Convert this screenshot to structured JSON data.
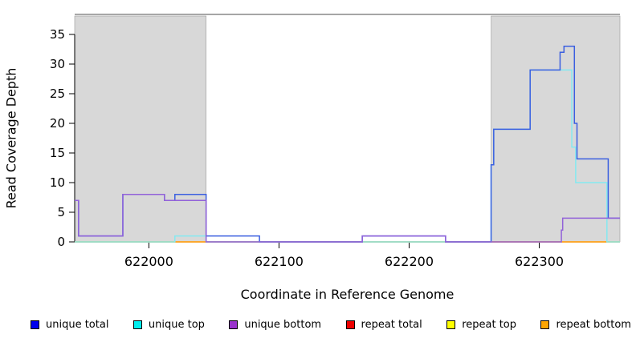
{
  "ylabel": "Read Coverage Depth",
  "xlabel": "Coordinate in Reference Genome",
  "chart_data": {
    "type": "line",
    "line_style": "step",
    "title": "",
    "xlabel": "Coordinate in Reference Genome",
    "ylabel": "Read Coverage Depth",
    "xlim": [
      621943,
      622362
    ],
    "ylim": [
      0,
      37
    ],
    "x_ticks": [
      622000,
      622100,
      622200,
      622300
    ],
    "y_ticks": [
      0,
      5,
      10,
      15,
      20,
      25,
      30,
      35
    ],
    "grid": false,
    "shaded_regions": {
      "color": "#d8d8d8",
      "border_color": "#9a9a9a",
      "ranges": [
        [
          621943,
          622044
        ],
        [
          622263,
          622362
        ]
      ]
    },
    "series": [
      {
        "name": "repeat total",
        "color": "#e8607a",
        "legend_color": "#ee0000",
        "points": [
          [
            621943,
            0
          ],
          [
            622362,
            0
          ]
        ]
      },
      {
        "name": "repeat top",
        "color": "#f2f22a",
        "legend_color": "#ffff00",
        "points": [
          [
            621943,
            0
          ],
          [
            622362,
            0
          ]
        ]
      },
      {
        "name": "repeat bottom",
        "color": "#ff9d1e",
        "legend_color": "#ffa500",
        "points": [
          [
            621943,
            0
          ],
          [
            622020,
            0
          ],
          [
            622040,
            0
          ],
          [
            622263,
            0
          ],
          [
            622353,
            0
          ],
          [
            622362,
            0
          ]
        ]
      },
      {
        "name": "unique top",
        "color": "#84e9f0",
        "legend_color": "#00eeee",
        "points": [
          [
            621943,
            0
          ],
          [
            622020,
            1
          ],
          [
            622044,
            0
          ],
          [
            622263,
            13
          ],
          [
            622265,
            19
          ],
          [
            622293,
            29
          ],
          [
            622325,
            16
          ],
          [
            622328,
            10
          ],
          [
            622352,
            0
          ],
          [
            622362,
            0
          ]
        ]
      },
      {
        "name": "unique total",
        "color": "#3b5fe0",
        "legend_color": "#0000ee",
        "points": [
          [
            621943,
            7
          ],
          [
            621946,
            1
          ],
          [
            621980,
            8
          ],
          [
            622012,
            7
          ],
          [
            622020,
            8
          ],
          [
            622044,
            1
          ],
          [
            622085,
            0
          ],
          [
            622164,
            1
          ],
          [
            622228,
            0
          ],
          [
            622263,
            13
          ],
          [
            622265,
            19
          ],
          [
            622293,
            29
          ],
          [
            622316,
            32
          ],
          [
            622319,
            33
          ],
          [
            622327,
            20
          ],
          [
            622329,
            14
          ],
          [
            622353,
            4
          ],
          [
            622362,
            4
          ]
        ]
      },
      {
        "name": "unique bottom",
        "color": "#9262d9",
        "legend_color": "#9a32cd",
        "points": [
          [
            621943,
            7
          ],
          [
            621946,
            1
          ],
          [
            621980,
            8
          ],
          [
            622012,
            7
          ],
          [
            622044,
            0
          ],
          [
            622164,
            1
          ],
          [
            622228,
            0
          ],
          [
            622317,
            2
          ],
          [
            622318,
            4
          ],
          [
            622362,
            4
          ]
        ]
      }
    ]
  },
  "legend": {
    "items": [
      {
        "label": "unique total",
        "color": "#0000ee"
      },
      {
        "label": "unique top",
        "color": "#00eeee"
      },
      {
        "label": "unique bottom",
        "color": "#9a32cd"
      },
      {
        "label": "repeat total",
        "color": "#ee0000"
      },
      {
        "label": "repeat top",
        "color": "#ffff00"
      },
      {
        "label": "repeat bottom",
        "color": "#ffa500"
      }
    ]
  }
}
